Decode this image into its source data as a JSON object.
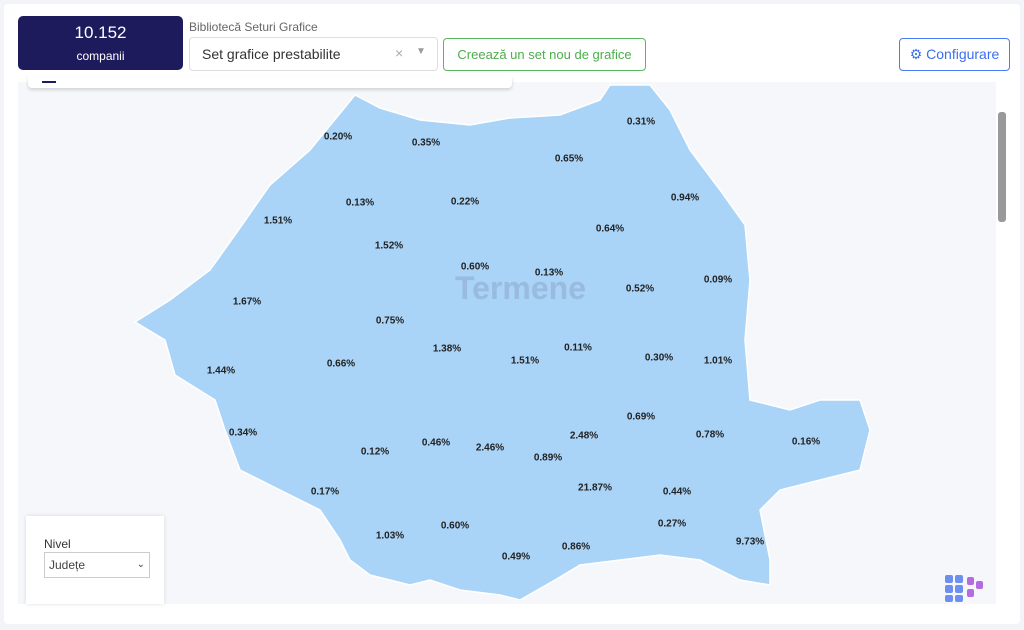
{
  "summary": {
    "count": "10.152",
    "unit": "companii"
  },
  "library": {
    "label": "Bibliotecă Seturi Grafice",
    "selected": "Set grafice prestabilite",
    "clear": "×",
    "caret": "▼"
  },
  "buttons": {
    "new_set": "Creează un set nou de grafice",
    "configure": "Configurare"
  },
  "watermark": "Termene",
  "level": {
    "label": "Nivel",
    "selected": "Județe"
  },
  "map": {
    "fill": "#a9d3f7",
    "border": "#ffffff",
    "values": [
      "0.20%",
      "0.35%",
      "0.31%",
      "0.65%",
      "0.13%",
      "0.22%",
      "0.94%",
      "1.51%",
      "1.52%",
      "0.64%",
      "0.60%",
      "0.13%",
      "0.09%",
      "0.52%",
      "1.67%",
      "0.75%",
      "1.38%",
      "1.51%",
      "0.11%",
      "0.30%",
      "1.01%",
      "1.44%",
      "0.66%",
      "0.69%",
      "0.34%",
      "0.46%",
      "2.46%",
      "2.48%",
      "0.78%",
      "0.16%",
      "0.12%",
      "0.89%",
      "21.87%",
      "0.44%",
      "0.17%",
      "1.03%",
      "0.60%",
      "0.27%",
      "9.73%",
      "0.49%",
      "0.86%"
    ]
  }
}
